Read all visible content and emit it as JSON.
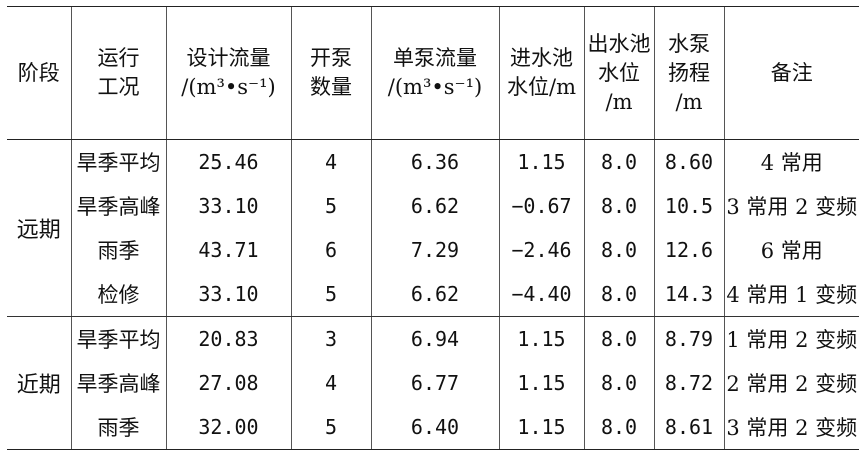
{
  "table": {
    "headers": [
      {
        "lines": [
          "阶段"
        ]
      },
      {
        "lines": [
          "运行",
          "工况"
        ]
      },
      {
        "lines": [
          "设计流量",
          "/(m³•s⁻¹)"
        ]
      },
      {
        "lines": [
          "开泵",
          "数量"
        ]
      },
      {
        "lines": [
          "单泵流量",
          "/(m³•s⁻¹)"
        ]
      },
      {
        "lines": [
          "进水池",
          "水位/m"
        ]
      },
      {
        "lines": [
          "出水池",
          "水位",
          "/m"
        ]
      },
      {
        "lines": [
          "水泵",
          "扬程",
          "/m"
        ]
      },
      {
        "lines": [
          "备注"
        ]
      }
    ],
    "groups": [
      {
        "stage": "远期",
        "rows": [
          {
            "condition": "旱季平均",
            "design_flow": "25.46",
            "pumps": "4",
            "single_flow": "6.36",
            "inlet_level": "1.15",
            "outlet_level": "8.0",
            "head": "8.60",
            "note": "4 常用"
          },
          {
            "condition": "旱季高峰",
            "design_flow": "33.10",
            "pumps": "5",
            "single_flow": "6.62",
            "inlet_level": "−0.67",
            "outlet_level": "8.0",
            "head": "10.5",
            "note": "3 常用 2 变频"
          },
          {
            "condition": "雨季",
            "design_flow": "43.71",
            "pumps": "6",
            "single_flow": "7.29",
            "inlet_level": "−2.46",
            "outlet_level": "8.0",
            "head": "12.6",
            "note": "6 常用"
          },
          {
            "condition": "检修",
            "design_flow": "33.10",
            "pumps": "5",
            "single_flow": "6.62",
            "inlet_level": "−4.40",
            "outlet_level": "8.0",
            "head": "14.3",
            "note": "4 常用 1 变频"
          }
        ]
      },
      {
        "stage": "近期",
        "rows": [
          {
            "condition": "旱季平均",
            "design_flow": "20.83",
            "pumps": "3",
            "single_flow": "6.94",
            "inlet_level": "1.15",
            "outlet_level": "8.0",
            "head": "8.79",
            "note": "1 常用 2 变频"
          },
          {
            "condition": "旱季高峰",
            "design_flow": "27.08",
            "pumps": "4",
            "single_flow": "6.77",
            "inlet_level": "1.15",
            "outlet_level": "8.0",
            "head": "8.72",
            "note": "2 常用 2 变频"
          },
          {
            "condition": "雨季",
            "design_flow": "32.00",
            "pumps": "5",
            "single_flow": "6.40",
            "inlet_level": "1.15",
            "outlet_level": "8.0",
            "head": "8.61",
            "note": "3 常用 2 变频"
          }
        ]
      }
    ]
  }
}
